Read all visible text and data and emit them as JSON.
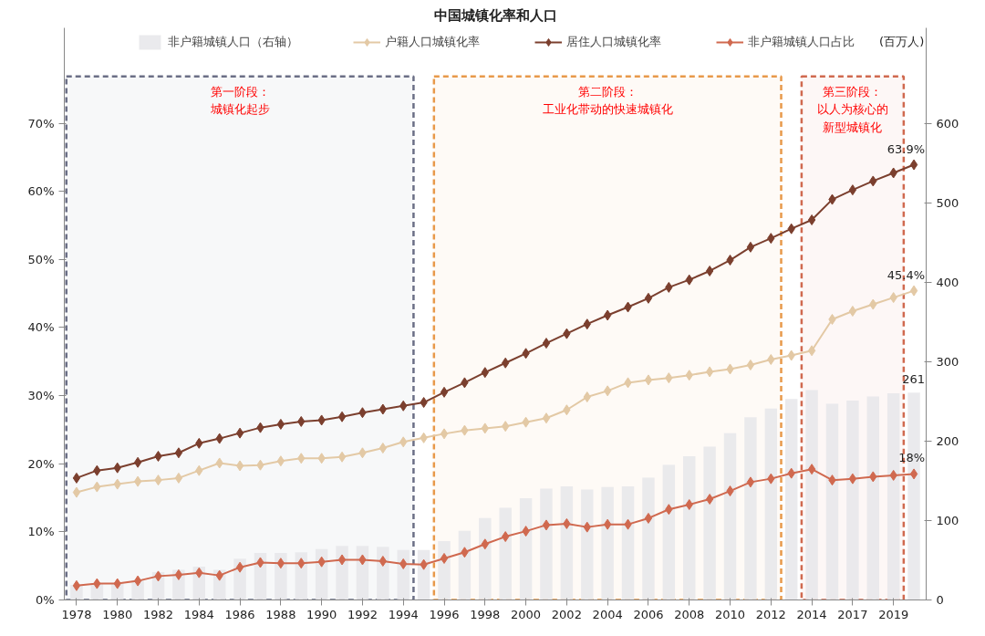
{
  "chart_data": {
    "type": "line",
    "title": "中国城镇化率和人口",
    "y2label": "(百万人)",
    "categories": [
      "1978",
      null,
      "1980",
      null,
      "1982",
      null,
      "1984",
      null,
      "1986",
      null,
      "1988",
      null,
      "1990",
      null,
      "1992",
      null,
      "1994",
      null,
      "1996",
      null,
      "1998",
      null,
      "2000",
      null,
      "2002",
      null,
      "2004",
      null,
      "2006",
      null,
      "2008",
      null,
      "2010",
      null,
      "2012",
      null,
      "2014",
      null,
      "2017",
      null,
      "2019",
      null
    ],
    "series": [
      {
        "name": "非户籍城镇人口（右轴）",
        "type": "bar",
        "axis": "y2",
        "color": "#e6e6ea",
        "values": [
          19,
          21,
          21,
          25,
          35,
          38,
          42,
          38,
          52,
          59,
          59,
          60,
          64,
          68,
          68,
          67,
          63,
          63,
          74,
          87,
          103,
          116,
          128,
          140,
          143,
          139,
          142,
          143,
          154,
          170,
          181,
          193,
          210,
          230,
          241,
          253,
          264,
          247,
          251,
          256,
          260,
          261
        ],
        "value_labels": [
          null,
          null,
          null,
          null,
          null,
          null,
          null,
          null,
          null,
          null,
          null,
          null,
          null,
          null,
          null,
          null,
          null,
          null,
          null,
          null,
          null,
          null,
          null,
          null,
          null,
          null,
          null,
          null,
          null,
          null,
          null,
          null,
          null,
          null,
          null,
          null,
          null,
          null,
          null,
          null,
          null,
          "261"
        ]
      },
      {
        "name": "户籍人口城镇化率",
        "color": "#e3c9a5",
        "values": [
          15.8,
          16.6,
          17.0,
          17.4,
          17.6,
          17.9,
          19.0,
          20.1,
          19.7,
          19.8,
          20.4,
          20.8,
          20.8,
          21.0,
          21.6,
          22.3,
          23.2,
          23.8,
          24.4,
          24.9,
          25.2,
          25.5,
          26.1,
          26.7,
          27.9,
          29.8,
          30.7,
          31.9,
          32.3,
          32.6,
          33.0,
          33.5,
          33.9,
          34.5,
          35.3,
          35.9,
          36.6,
          41.2,
          42.4,
          43.4,
          44.4,
          45.4
        ],
        "value_labels": [
          null,
          null,
          null,
          null,
          null,
          null,
          null,
          null,
          null,
          null,
          null,
          null,
          null,
          null,
          null,
          null,
          null,
          null,
          null,
          null,
          null,
          null,
          null,
          null,
          null,
          null,
          null,
          null,
          null,
          null,
          null,
          null,
          null,
          null,
          null,
          null,
          null,
          null,
          null,
          null,
          null,
          "45.4%"
        ]
      },
      {
        "name": "居住人口城镇化率",
        "color": "#7b3f2e",
        "values": [
          17.9,
          19.0,
          19.4,
          20.2,
          21.1,
          21.6,
          23.0,
          23.7,
          24.5,
          25.3,
          25.8,
          26.2,
          26.4,
          26.9,
          27.5,
          28.0,
          28.5,
          29.0,
          30.5,
          31.9,
          33.4,
          34.8,
          36.2,
          37.7,
          39.1,
          40.5,
          41.8,
          43.0,
          44.3,
          45.9,
          47.0,
          48.3,
          49.9,
          51.8,
          53.1,
          54.5,
          55.8,
          58.8,
          60.2,
          61.5,
          62.7,
          63.9
        ],
        "value_labels": [
          null,
          null,
          null,
          null,
          null,
          null,
          null,
          null,
          null,
          null,
          null,
          null,
          null,
          null,
          null,
          null,
          null,
          null,
          null,
          null,
          null,
          null,
          null,
          null,
          null,
          null,
          null,
          null,
          null,
          null,
          null,
          null,
          null,
          null,
          null,
          null,
          null,
          null,
          null,
          null,
          null,
          "63.9%"
        ]
      },
      {
        "name": "非户籍城镇人口占比",
        "color": "#d0694f",
        "values": [
          2.1,
          2.4,
          2.4,
          2.8,
          3.5,
          3.7,
          4.0,
          3.6,
          4.8,
          5.5,
          5.4,
          5.4,
          5.6,
          5.9,
          5.9,
          5.7,
          5.3,
          5.2,
          6.1,
          7.0,
          8.2,
          9.3,
          10.1,
          11.0,
          11.2,
          10.7,
          11.1,
          11.1,
          12.0,
          13.3,
          14.0,
          14.8,
          16.0,
          17.3,
          17.8,
          18.6,
          19.2,
          17.6,
          17.8,
          18.1,
          18.3,
          18.5
        ],
        "value_labels": [
          null,
          null,
          null,
          null,
          null,
          null,
          null,
          null,
          null,
          null,
          null,
          null,
          null,
          null,
          null,
          null,
          null,
          null,
          null,
          null,
          null,
          null,
          null,
          null,
          null,
          null,
          null,
          null,
          null,
          null,
          null,
          null,
          null,
          null,
          null,
          null,
          null,
          null,
          null,
          null,
          null,
          "18%"
        ]
      }
    ],
    "ylim": [
      0,
      84
    ],
    "yticks": [
      {
        "value": 0,
        "label": "0%"
      },
      {
        "value": 10,
        "label": "10%"
      },
      {
        "value": 20,
        "label": "20%"
      },
      {
        "value": 30,
        "label": "30%"
      },
      {
        "value": 40,
        "label": "40%"
      },
      {
        "value": 50,
        "label": "50%"
      },
      {
        "value": 60,
        "label": "60%"
      },
      {
        "value": 70,
        "label": "70%"
      }
    ],
    "y2lim": [
      0,
      720
    ],
    "y2ticks": [
      0,
      100,
      200,
      300,
      400,
      500,
      600
    ],
    "bands": [
      {
        "axis": "x",
        "from": "1978",
        "to": "1994",
        "label": "第一阶段：城镇化起步",
        "color": "#6b6f86"
      },
      {
        "axis": "x",
        "from": "1996",
        "to": "2012",
        "label": "第二阶段：工业化带动的快速城镇化",
        "color": "#e8994a"
      },
      {
        "axis": "x",
        "from": "2014",
        "to": "2019",
        "label": "第三阶段：以人为核心的新型城镇化",
        "color": "#d0694f"
      }
    ],
    "marker": "diamond",
    "line_style": "solid",
    "grid": false,
    "legend": "top"
  }
}
